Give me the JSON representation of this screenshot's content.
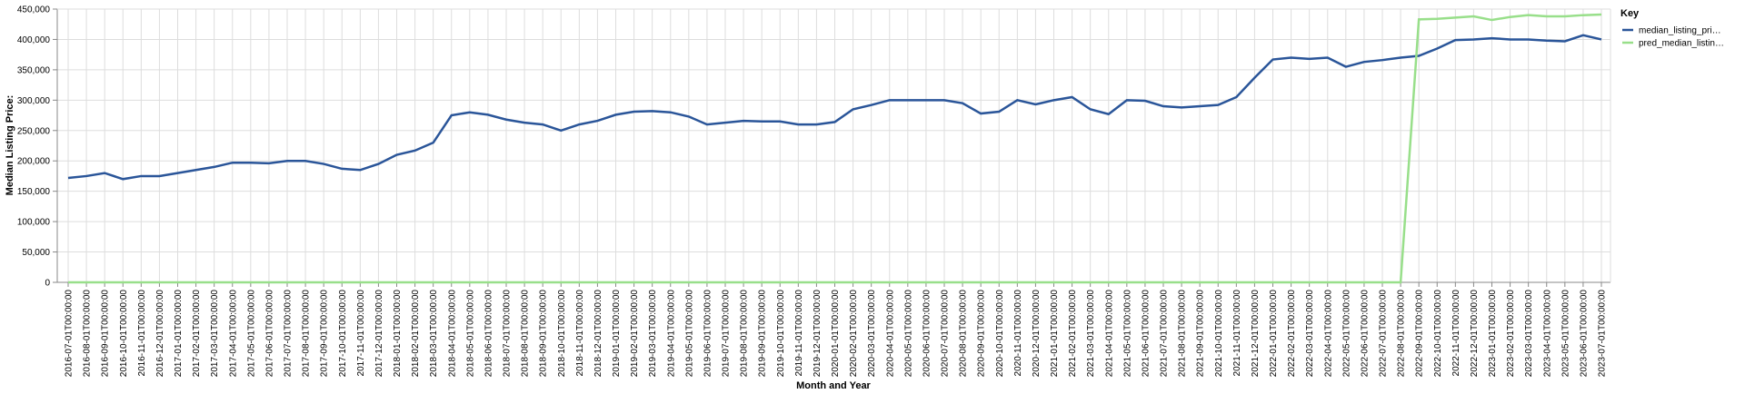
{
  "chart_data": {
    "type": "line",
    "y_label": "Median Listing Price:",
    "x_label": "Month and Year",
    "legend_title": "Key",
    "legend": "top-right",
    "grid": true,
    "categories": [
      "2016-07-01T00:00:00",
      "2016-08-01T00:00:00",
      "2016-09-01T00:00:00",
      "2016-10-01T00:00:00",
      "2016-11-01T00:00:00",
      "2016-12-01T00:00:00",
      "2017-01-01T00:00:00",
      "2017-02-01T00:00:00",
      "2017-03-01T00:00:00",
      "2017-04-01T00:00:00",
      "2017-05-01T00:00:00",
      "2017-06-01T00:00:00",
      "2017-07-01T00:00:00",
      "2017-08-01T00:00:00",
      "2017-09-01T00:00:00",
      "2017-10-01T00:00:00",
      "2017-11-01T00:00:00",
      "2017-12-01T00:00:00",
      "2018-01-01T00:00:00",
      "2018-02-01T00:00:00",
      "2018-03-01T00:00:00",
      "2018-04-01T00:00:00",
      "2018-05-01T00:00:00",
      "2018-06-01T00:00:00",
      "2018-07-01T00:00:00",
      "2018-08-01T00:00:00",
      "2018-09-01T00:00:00",
      "2018-10-01T00:00:00",
      "2018-11-01T00:00:00",
      "2018-12-01T00:00:00",
      "2019-01-01T00:00:00",
      "2019-02-01T00:00:00",
      "2019-03-01T00:00:00",
      "2019-04-01T00:00:00",
      "2019-05-01T00:00:00",
      "2019-06-01T00:00:00",
      "2019-07-01T00:00:00",
      "2019-08-01T00:00:00",
      "2019-09-01T00:00:00",
      "2019-10-01T00:00:00",
      "2019-11-01T00:00:00",
      "2019-12-01T00:00:00",
      "2020-01-01T00:00:00",
      "2020-02-01T00:00:00",
      "2020-03-01T00:00:00",
      "2020-04-01T00:00:00",
      "2020-05-01T00:00:00",
      "2020-06-01T00:00:00",
      "2020-07-01T00:00:00",
      "2020-08-01T00:00:00",
      "2020-09-01T00:00:00",
      "2020-10-01T00:00:00",
      "2020-11-01T00:00:00",
      "2020-12-01T00:00:00",
      "2021-01-01T00:00:00",
      "2021-02-01T00:00:00",
      "2021-03-01T00:00:00",
      "2021-04-01T00:00:00",
      "2021-05-01T00:00:00",
      "2021-06-01T00:00:00",
      "2021-07-01T00:00:00",
      "2021-08-01T00:00:00",
      "2021-09-01T00:00:00",
      "2021-10-01T00:00:00",
      "2021-11-01T00:00:00",
      "2021-12-01T00:00:00",
      "2022-01-01T00:00:00",
      "2022-02-01T00:00:00",
      "2022-03-01T00:00:00",
      "2022-04-01T00:00:00",
      "2022-05-01T00:00:00",
      "2022-06-01T00:00:00",
      "2022-07-01T00:00:00",
      "2022-08-01T00:00:00",
      "2022-09-01T00:00:00",
      "2022-10-01T00:00:00",
      "2022-11-01T00:00:00",
      "2022-12-01T00:00:00",
      "2023-01-01T00:00:00",
      "2023-02-01T00:00:00",
      "2023-03-01T00:00:00",
      "2023-04-01T00:00:00",
      "2023-05-01T00:00:00",
      "2023-06-01T00:00:00",
      "2023-07-01T00:00:00"
    ],
    "series": [
      {
        "name": "median_listing_pri…",
        "color": "#2a5599",
        "values": [
          172000,
          175000,
          180000,
          170000,
          175000,
          175000,
          180000,
          185000,
          190000,
          197000,
          197000,
          196000,
          200000,
          200000,
          195000,
          187000,
          185000,
          195000,
          210000,
          217000,
          230000,
          275000,
          280000,
          276000,
          268000,
          263000,
          260000,
          250000,
          260000,
          266000,
          276000,
          281000,
          282000,
          280000,
          273000,
          260000,
          263000,
          266000,
          265000,
          265000,
          260000,
          260000,
          264000,
          285000,
          292000,
          300000,
          300000,
          300000,
          300000,
          295000,
          278000,
          281000,
          300000,
          293000,
          300000,
          305000,
          285000,
          277000,
          300000,
          299000,
          290000,
          288000,
          290000,
          292000,
          305000,
          337000,
          367000,
          370000,
          368000,
          370000,
          355000,
          363000,
          366000,
          370000,
          373000,
          385000,
          399000,
          400000,
          402000,
          400000,
          400000,
          398000,
          397000,
          407000,
          400000
        ]
      },
      {
        "name": "pred_median_listin…",
        "color": "#98df8a",
        "values": [
          0,
          0,
          0,
          0,
          0,
          0,
          0,
          0,
          0,
          0,
          0,
          0,
          0,
          0,
          0,
          0,
          0,
          0,
          0,
          0,
          0,
          0,
          0,
          0,
          0,
          0,
          0,
          0,
          0,
          0,
          0,
          0,
          0,
          0,
          0,
          0,
          0,
          0,
          0,
          0,
          0,
          0,
          0,
          0,
          0,
          0,
          0,
          0,
          0,
          0,
          0,
          0,
          0,
          0,
          0,
          0,
          0,
          0,
          0,
          0,
          0,
          0,
          0,
          0,
          0,
          0,
          0,
          0,
          0,
          0,
          0,
          0,
          0,
          0,
          433000,
          434000,
          436000,
          438000,
          432000,
          437000,
          440000,
          438000,
          438000,
          440000,
          441000
        ]
      }
    ],
    "ylim": [
      0,
      450000
    ],
    "yticks": [
      0,
      {
        "value": 50000,
        "label": "50,000"
      },
      {
        "value": 100000,
        "label": "100,000"
      },
      {
        "value": 150000,
        "label": "150,000"
      },
      {
        "value": 200000,
        "label": "200,000"
      },
      {
        "value": 250000,
        "label": "250,000"
      },
      {
        "value": 300000,
        "label": "300,000"
      },
      {
        "value": 350000,
        "label": "350,000"
      },
      {
        "value": 400000,
        "label": "400,000"
      },
      {
        "value": 450000,
        "label": "450,000"
      }
    ]
  }
}
